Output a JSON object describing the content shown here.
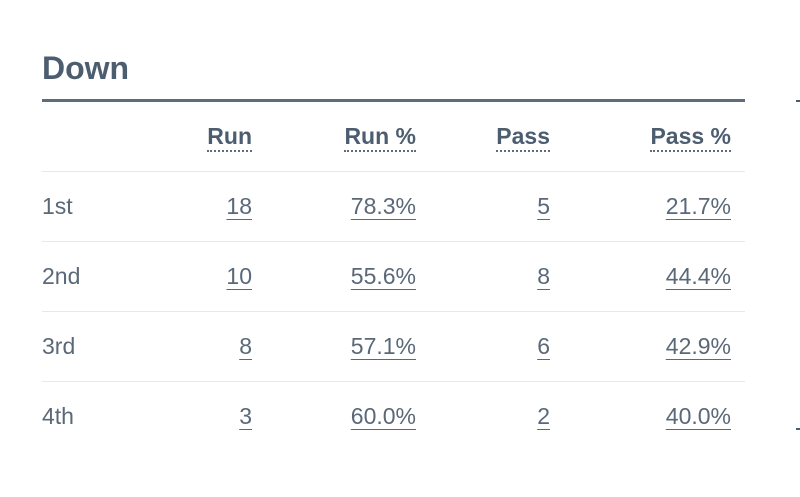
{
  "section": {
    "title": "Down"
  },
  "table": {
    "headers": {
      "label": "",
      "run": "Run",
      "run_pct": "Run %",
      "pass": "Pass",
      "pass_pct": "Pass %"
    },
    "rows": [
      {
        "down": "1st",
        "run": "18",
        "run_pct": "78.3%",
        "pass": "5",
        "pass_pct": "21.7%"
      },
      {
        "down": "2nd",
        "run": "10",
        "run_pct": "55.6%",
        "pass": "8",
        "pass_pct": "44.4%"
      },
      {
        "down": "3rd",
        "run": "8",
        "run_pct": "57.1%",
        "pass": "6",
        "pass_pct": "42.9%"
      },
      {
        "down": "4th",
        "run": "3",
        "run_pct": "60.0%",
        "pass": "2",
        "pass_pct": "40.0%"
      }
    ]
  },
  "colors": {
    "title": "#4d5d70",
    "text": "#5a6878",
    "rule": "#5e6c7c",
    "row_divider": "#e6e9ec",
    "background": "#ffffff"
  }
}
